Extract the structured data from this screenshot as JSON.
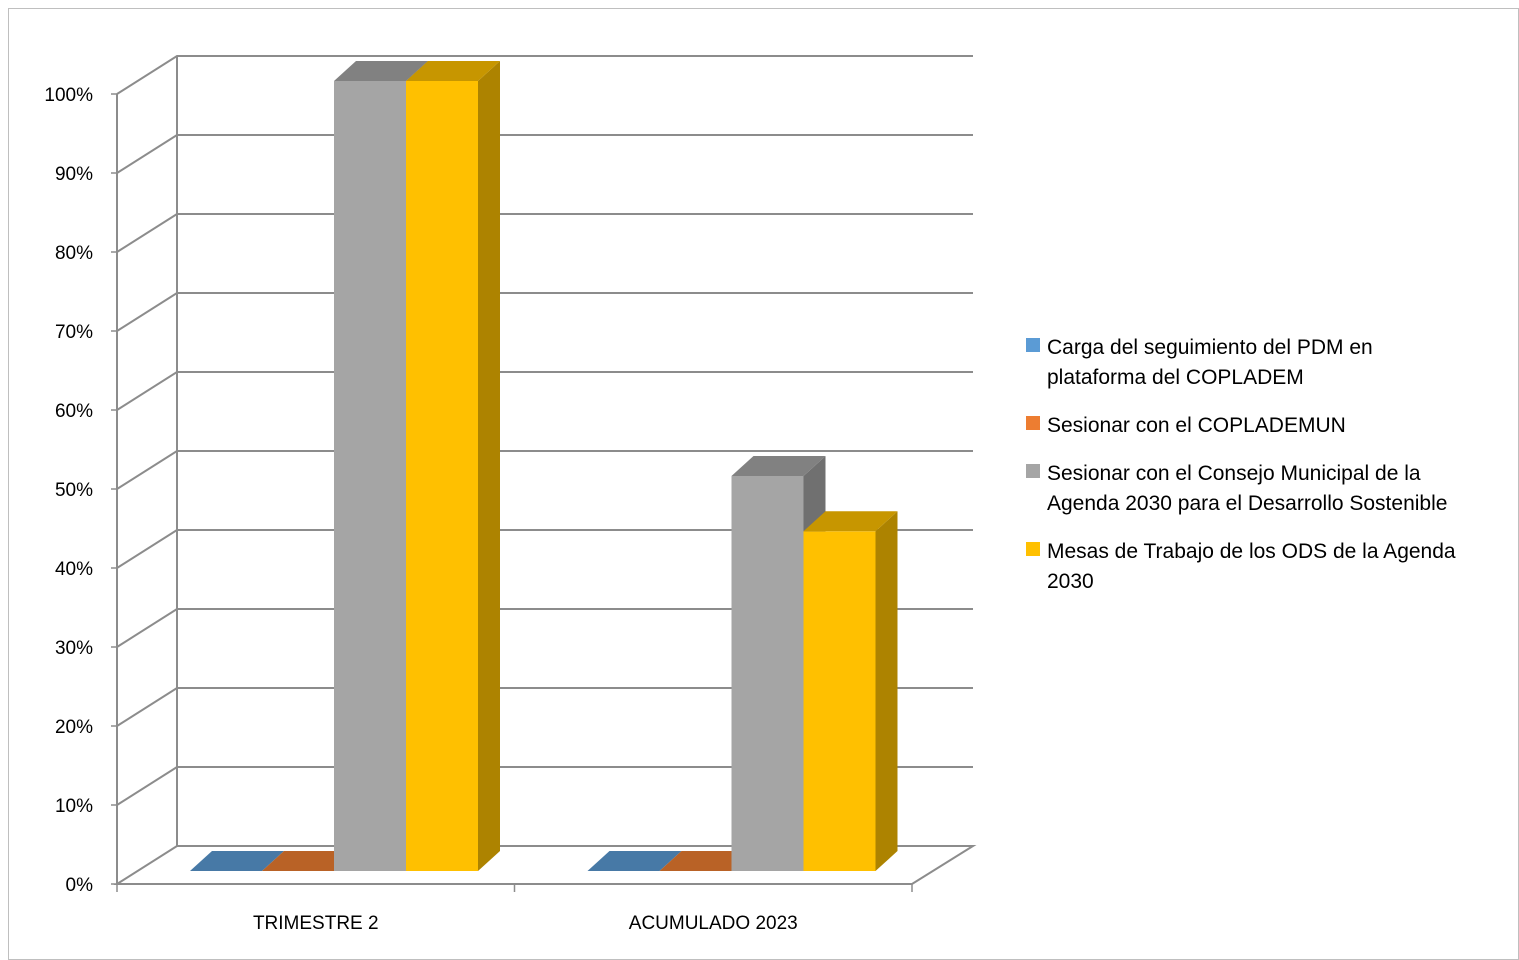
{
  "chart_data": {
    "type": "bar",
    "three_d": true,
    "categories": [
      "TRIMESTRE 2",
      "ACUMULADO 2023"
    ],
    "series": [
      {
        "name": "Carga del seguimiento del PDM en plataforma del COPLADEM",
        "legend_lines": [
          "Carga del seguimiento del PDM en",
          "plataforma del COPLADEM"
        ],
        "values": [
          0,
          0
        ],
        "color": "#5B9BD5"
      },
      {
        "name": "Sesionar con el COPLADEMUN",
        "legend_lines": [
          "Sesionar con el COPLADEMUN"
        ],
        "values": [
          0,
          0
        ],
        "color": "#ED7D31"
      },
      {
        "name": "Sesionar con el  Consejo Municipal de la Agenda 2030 para el Desarrollo Sostenible",
        "legend_lines": [
          "Sesionar con el  Consejo Municipal de la",
          "Agenda 2030 para el Desarrollo Sostenible"
        ],
        "values": [
          100,
          50
        ],
        "color": "#A5A5A5"
      },
      {
        "name": "Mesas de Trabajo de los ODS de la Agenda 2030",
        "legend_lines": [
          "Mesas de Trabajo de los ODS de la Agenda",
          "2030"
        ],
        "values": [
          100,
          43
        ],
        "color": "#FFC000"
      }
    ],
    "y_ticks": [
      "0%",
      "10%",
      "20%",
      "30%",
      "40%",
      "50%",
      "60%",
      "70%",
      "80%",
      "90%",
      "100%"
    ],
    "ylim": [
      0,
      100
    ],
    "grid": true,
    "legend_position": "right",
    "title": "",
    "xlabel": "",
    "ylabel": ""
  }
}
